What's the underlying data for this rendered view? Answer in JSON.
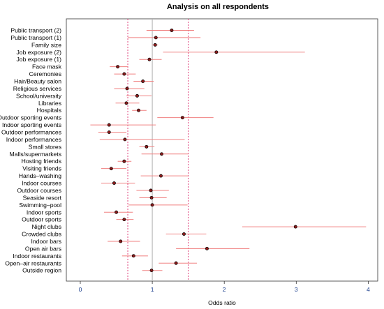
{
  "chart_data": {
    "type": "forest",
    "title": "Analysis on all respondents",
    "xlabel": "Odds ratio",
    "xlim": [
      -0.1,
      4.1
    ],
    "xticks": [
      "0",
      "1",
      "2",
      "3",
      "4"
    ],
    "tick_values": [
      0,
      1,
      2,
      3,
      4
    ],
    "reference_line": 1,
    "band": [
      0.66,
      1.5
    ],
    "colors": {
      "ci": "#f08080",
      "point": "#000000",
      "point_fill": "#8b1a1a",
      "reference": "#b0b0b0",
      "band": "#e0407a",
      "axis": "#333333",
      "tick_text": "#1a3e8c"
    },
    "rows": [
      {
        "label": "Public transport (2)",
        "or": 1.27,
        "lo": 0.92,
        "hi": 1.58
      },
      {
        "label": "Public transport (1)",
        "or": 1.05,
        "lo": 0.66,
        "hi": 1.67
      },
      {
        "label": "Family size",
        "or": 1.04,
        "lo": 1.0,
        "hi": 1.08
      },
      {
        "label": "Job exposure (2)",
        "or": 1.89,
        "lo": 1.15,
        "hi": 3.12
      },
      {
        "label": "Job exposure (1)",
        "or": 0.96,
        "lo": 0.82,
        "hi": 1.13
      },
      {
        "label": "Face mask",
        "or": 0.52,
        "lo": 0.41,
        "hi": 0.66
      },
      {
        "label": "Ceremonies",
        "or": 0.61,
        "lo": 0.47,
        "hi": 0.77
      },
      {
        "label": "Hair/Beauty salon",
        "or": 0.87,
        "lo": 0.74,
        "hi": 1.02
      },
      {
        "label": "Religious services",
        "or": 0.65,
        "lo": 0.47,
        "hi": 0.89
      },
      {
        "label": "School/university",
        "or": 0.79,
        "lo": 0.64,
        "hi": 0.99
      },
      {
        "label": "Libraries",
        "or": 0.64,
        "lo": 0.49,
        "hi": 0.82
      },
      {
        "label": "Hospitals",
        "or": 0.81,
        "lo": 0.72,
        "hi": 0.92
      },
      {
        "label": "Outdoor sporting events",
        "or": 1.42,
        "lo": 1.07,
        "hi": 1.85
      },
      {
        "label": "Indoor sporting events",
        "or": 0.4,
        "lo": 0.14,
        "hi": 1.05
      },
      {
        "label": "Outdoor performances",
        "or": 0.4,
        "lo": 0.25,
        "hi": 0.64
      },
      {
        "label": "Indoor performances",
        "or": 0.62,
        "lo": 0.27,
        "hi": 1.45
      },
      {
        "label": "Small stores",
        "or": 0.92,
        "lo": 0.82,
        "hi": 1.03
      },
      {
        "label": "Malls/supermarkets",
        "or": 1.13,
        "lo": 0.85,
        "hi": 1.5
      },
      {
        "label": "Hosting friends",
        "or": 0.61,
        "lo": 0.52,
        "hi": 0.71
      },
      {
        "label": "Visiting friends",
        "or": 0.43,
        "lo": 0.29,
        "hi": 0.64
      },
      {
        "label": "Hands–washing",
        "or": 1.12,
        "lo": 0.84,
        "hi": 1.5
      },
      {
        "label": "Indoor courses",
        "or": 0.47,
        "lo": 0.29,
        "hi": 0.76
      },
      {
        "label": "Outdoor courses",
        "or": 0.98,
        "lo": 0.78,
        "hi": 1.23
      },
      {
        "label": "Seaside resort",
        "or": 0.99,
        "lo": 0.82,
        "hi": 1.2
      },
      {
        "label": "Swimming–pool",
        "or": 1.0,
        "lo": 0.67,
        "hi": 1.49
      },
      {
        "label": "Indoor sports",
        "or": 0.5,
        "lo": 0.33,
        "hi": 0.73
      },
      {
        "label": "Outdoor sports",
        "or": 0.61,
        "lo": 0.5,
        "hi": 0.74
      },
      {
        "label": "Night clubs",
        "or": 2.99,
        "lo": 2.25,
        "hi": 3.97
      },
      {
        "label": "Crowded clubs",
        "or": 1.44,
        "lo": 1.19,
        "hi": 1.75
      },
      {
        "label": "Indoor bars",
        "or": 0.56,
        "lo": 0.38,
        "hi": 0.83
      },
      {
        "label": "Open air bars",
        "or": 1.76,
        "lo": 1.33,
        "hi": 2.35
      },
      {
        "label": "Indoor restaurants",
        "or": 0.74,
        "lo": 0.58,
        "hi": 0.94
      },
      {
        "label": "Open–air restaurants",
        "or": 1.33,
        "lo": 1.09,
        "hi": 1.62
      },
      {
        "label": "Outside region",
        "or": 0.99,
        "lo": 0.86,
        "hi": 1.14
      }
    ]
  }
}
